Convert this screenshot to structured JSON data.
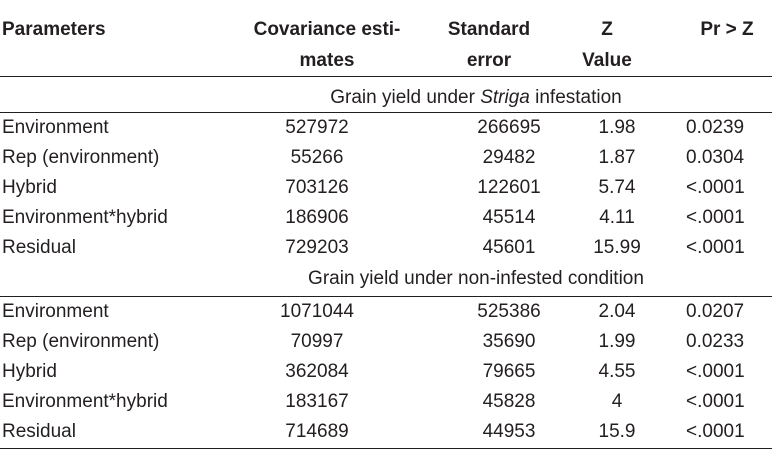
{
  "headers": {
    "parameters": "Parameters",
    "covariance_line1": "Covariance esti-",
    "covariance_line2": "mates",
    "std_error_line1": "Standard",
    "std_error_line2": "error",
    "z_value_line1": "Z",
    "z_value_line2": "Value",
    "p_value": "Pr > Z"
  },
  "section1": {
    "title_prefix": "Grain yield under ",
    "title_italic": "Striga",
    "title_suffix": " infestation",
    "rows": [
      {
        "parameter": "Environment",
        "covariance": "527972",
        "std_error": "266695",
        "z": "1.98",
        "p": "0.0239"
      },
      {
        "parameter": "Rep (environment)",
        "covariance": "55266",
        "std_error": "29482",
        "z": "1.87",
        "p": "0.0304"
      },
      {
        "parameter": "Hybrid",
        "covariance": "703126",
        "std_error": "122601",
        "z": "5.74",
        "p": "<.0001"
      },
      {
        "parameter": "Environment*hybrid",
        "covariance": "186906",
        "std_error": "45514",
        "z": "4.11",
        "p": "<.0001"
      },
      {
        "parameter": "Residual",
        "covariance": "729203",
        "std_error": "45601",
        "z": "15.99",
        "p": "<.0001"
      }
    ]
  },
  "section2": {
    "title": "Grain yield under non-infested condition",
    "rows": [
      {
        "parameter": "Environment",
        "covariance": "1071044",
        "std_error": "525386",
        "z": "2.04",
        "p": "0.0207"
      },
      {
        "parameter": "Rep (environment)",
        "covariance": "70997",
        "std_error": "35690",
        "z": "1.99",
        "p": "0.0233"
      },
      {
        "parameter": "Hybrid",
        "covariance": "362084",
        "std_error": "79665",
        "z": "4.55",
        "p": "<.0001"
      },
      {
        "parameter": "Environment*hybrid",
        "covariance": "183167",
        "std_error": "45828",
        "z": "4",
        "p": "<.0001"
      },
      {
        "parameter": "Residual",
        "covariance": "714689",
        "std_error": "44953",
        "z": "15.9",
        "p": "<.0001"
      }
    ]
  }
}
